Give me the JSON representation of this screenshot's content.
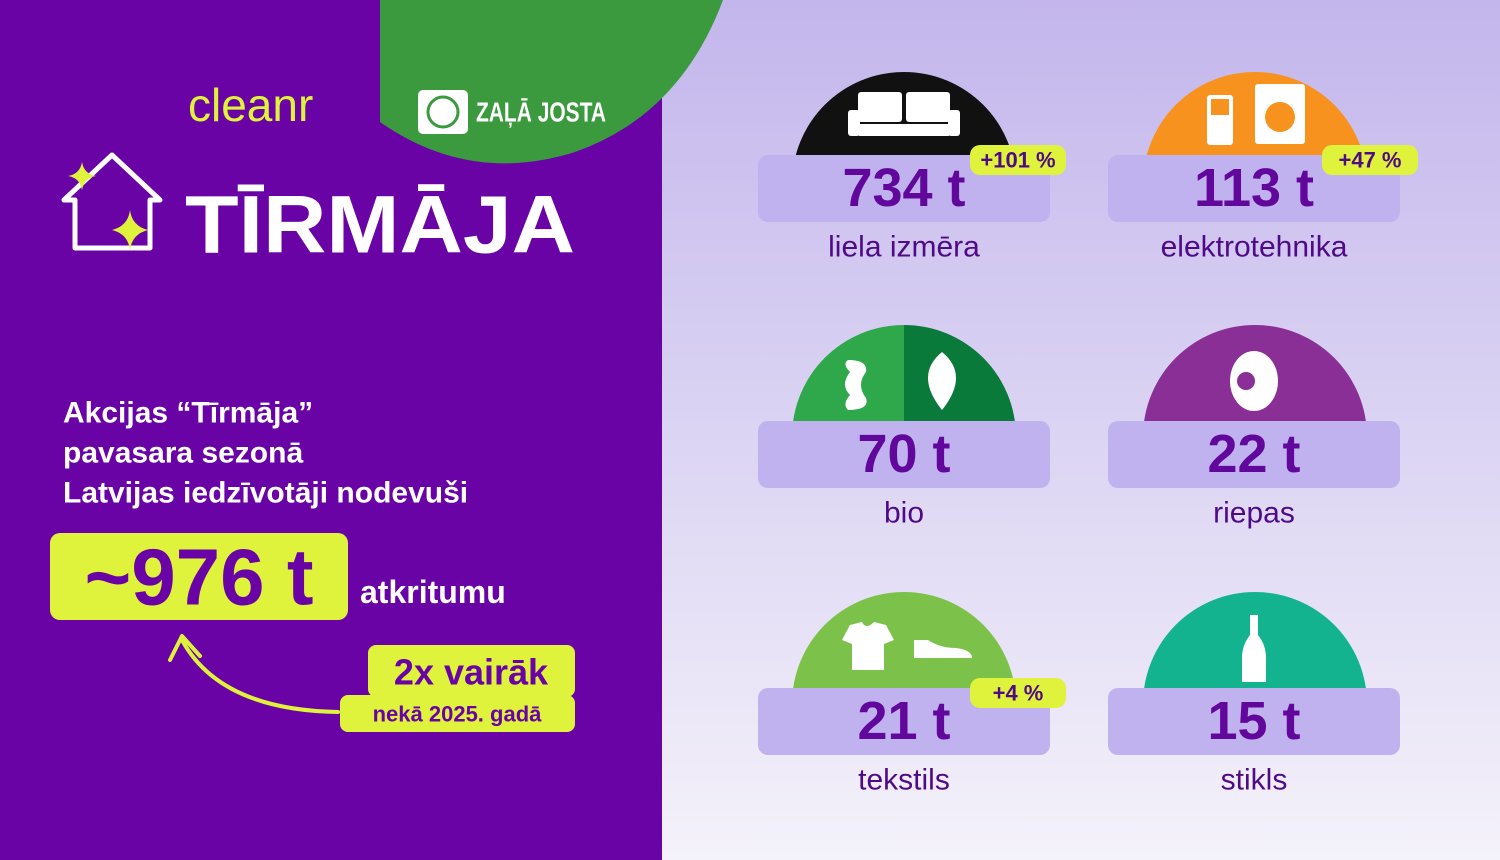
{
  "logos": {
    "cleanr": "cleanr",
    "zala_josta": "ZAĻĀ JOSTA"
  },
  "title": "TĪRMĀJA",
  "intro": {
    "lines": [
      "Akcijas “Tīrmāja”",
      "pavasara sezonā",
      "Latvijas iedzīvotāji nodevuši"
    ],
    "total": "~976 t",
    "total_unit": "atkritumu",
    "comparison": "2x vairāk",
    "comparison_note": "nekā 2025. gadā"
  },
  "items": [
    {
      "amount": "734 t",
      "label": "liela izmēra",
      "change": "+101 %"
    },
    {
      "amount": "113 t",
      "label": "elektrotehnika",
      "change": "+47 %"
    },
    {
      "amount": "70 t",
      "label": "bio"
    },
    {
      "amount": "22 t",
      "label": "riepas"
    },
    {
      "amount": "21 t",
      "label": "tekstils",
      "change": "+4 %"
    },
    {
      "amount": "15 t",
      "label": "stikls"
    }
  ]
}
